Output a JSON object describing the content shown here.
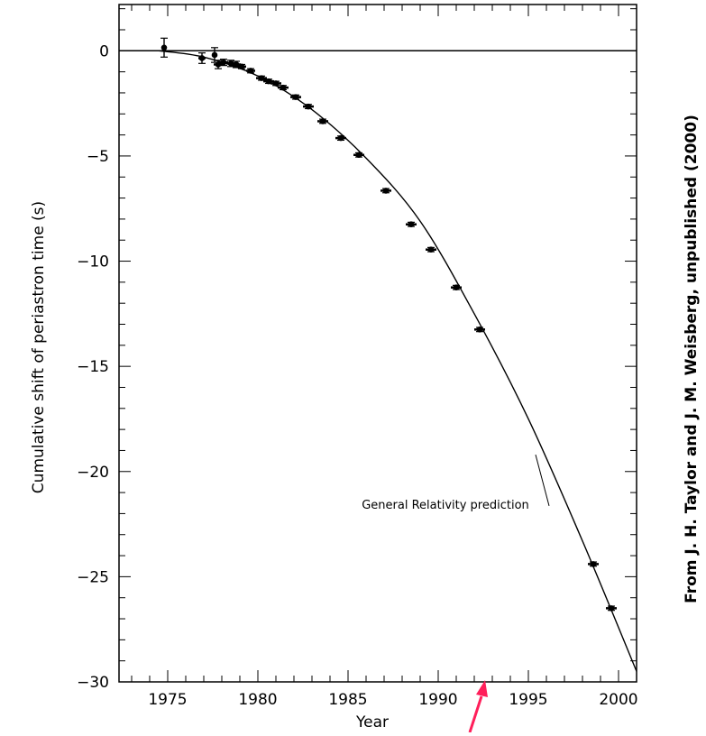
{
  "chart_data": {
    "type": "scatter",
    "title": "",
    "xlabel": "Year",
    "ylabel": "Cumulative shift of periastron time (s)",
    "xlim": [
      1972.3,
      2001.0
    ],
    "ylim": [
      -30,
      2.2
    ],
    "xticks": [
      1975,
      1980,
      1985,
      1990,
      1995,
      2000
    ],
    "xtick_labels": [
      "1975",
      "1980",
      "1985",
      "1990",
      "1995",
      "2000"
    ],
    "yticks": [
      0,
      -5,
      -10,
      -15,
      -20,
      -25,
      -30
    ],
    "ytick_labels": [
      "0",
      "−5",
      "−10",
      "−15",
      "−20",
      "−25",
      "−30"
    ],
    "grid": false,
    "reference_line": {
      "y": 0
    },
    "series": [
      {
        "kind": "points_with_error_bars",
        "x": [
          1974.8,
          1976.9,
          1977.6,
          1977.8,
          1978.1,
          1978.5,
          1978.8,
          1979.1,
          1979.6,
          1980.2,
          1980.6,
          1981.0,
          1981.4,
          1982.1,
          1982.8,
          1983.6,
          1984.6,
          1985.6,
          1987.1,
          1988.5,
          1989.6,
          1991.0,
          1992.3,
          1998.6,
          1999.6
        ],
        "y": [
          0.15,
          -0.35,
          -0.2,
          -0.65,
          -0.55,
          -0.6,
          -0.65,
          -0.75,
          -0.95,
          -1.3,
          -1.45,
          -1.55,
          -1.75,
          -2.2,
          -2.65,
          -3.35,
          -4.15,
          -4.95,
          -6.65,
          -8.25,
          -9.45,
          -11.25,
          -13.25,
          -24.4,
          -26.5
        ],
        "yerr": [
          0.45,
          0.25,
          0.35,
          0.2,
          0.15,
          0.15,
          0.15,
          0.1,
          0.1,
          0.1,
          0.1,
          0.1,
          0.1,
          0.1,
          0.1,
          0.1,
          0.1,
          0.1,
          0.1,
          0.1,
          0.1,
          0.1,
          0.1,
          0.1,
          0.1
        ],
        "xerr": [
          0.15,
          0.2,
          0.15,
          0.25,
          0.25,
          0.25,
          0.25,
          0.25,
          0.25,
          0.3,
          0.3,
          0.3,
          0.3,
          0.3,
          0.3,
          0.3,
          0.3,
          0.3,
          0.3,
          0.3,
          0.3,
          0.3,
          0.3,
          0.3,
          0.3
        ]
      },
      {
        "kind": "curve",
        "x": [
          1974.5,
          1977,
          1980,
          1983,
          1986,
          1989,
          1992,
          1995,
          1998,
          2001
        ],
        "y": [
          0,
          -0.3,
          -1.2,
          -2.8,
          -5.1,
          -8.1,
          -12.5,
          -17.5,
          -23.3,
          -29.5
        ]
      }
    ],
    "annotations": [
      {
        "text": "General Relativity prediction",
        "x": 1990.4,
        "y": -21.55,
        "points_to": [
          1995.4,
          -19.2
        ]
      }
    ]
  },
  "credit": "From  J. H. Taylor and J. M. Weisberg,  unpublished (2000)",
  "marker_arrow_color": "#ff1f5a"
}
